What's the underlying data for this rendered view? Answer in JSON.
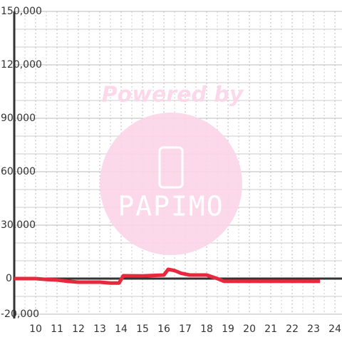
{
  "chart_data": {
    "type": "line",
    "watermark": {
      "line1": "Powered by",
      "line2": "PAPIMO"
    },
    "x": [
      9.0,
      10.0,
      10.5,
      11.0,
      11.5,
      12.0,
      12.5,
      13.0,
      13.5,
      13.9,
      14.1,
      15.0,
      16.0,
      16.2,
      16.5,
      16.8,
      17.2,
      18.0,
      18.5,
      18.8,
      19.0,
      20.0,
      21.0,
      22.0,
      23.0,
      23.3
    ],
    "series": [
      {
        "color": "#e8283c",
        "values": [
          0,
          0,
          -500,
          -800,
          -1500,
          -2000,
          -2000,
          -2000,
          -2500,
          -2500,
          1600,
          1500,
          2000,
          5200,
          4500,
          3000,
          2000,
          2000,
          0,
          -1500,
          -1500,
          -1500,
          -1500,
          -1500,
          -1500,
          -1500
        ]
      }
    ],
    "xlim": [
      9,
      24.33
    ],
    "ylim": [
      -20000,
      150000
    ],
    "xticks": [
      10,
      11,
      12,
      13,
      14,
      15,
      16,
      17,
      18,
      19,
      20,
      21,
      22,
      23,
      24
    ],
    "yticks": [
      {
        "value": -20000,
        "label": "-20,000"
      },
      0,
      {
        "value": 30000,
        "label": "30,000"
      },
      {
        "value": 60000,
        "label": "60,000"
      },
      {
        "value": 90000,
        "label": "90,000"
      },
      {
        "value": 120000,
        "label": "120,000"
      },
      {
        "value": 150000,
        "label": "150,000"
      }
    ],
    "y_minor_ticks": [
      -10000,
      10000,
      20000,
      40000,
      50000,
      70000,
      80000,
      100000,
      110000,
      130000,
      140000
    ],
    "x_minor_ticks": [
      9.5,
      10.5,
      11.5,
      12.5,
      13.5,
      14.5,
      15.5,
      16.5,
      17.5,
      18.5,
      19.5,
      20.5,
      21.5,
      22.5,
      23.5
    ],
    "grid": true
  }
}
